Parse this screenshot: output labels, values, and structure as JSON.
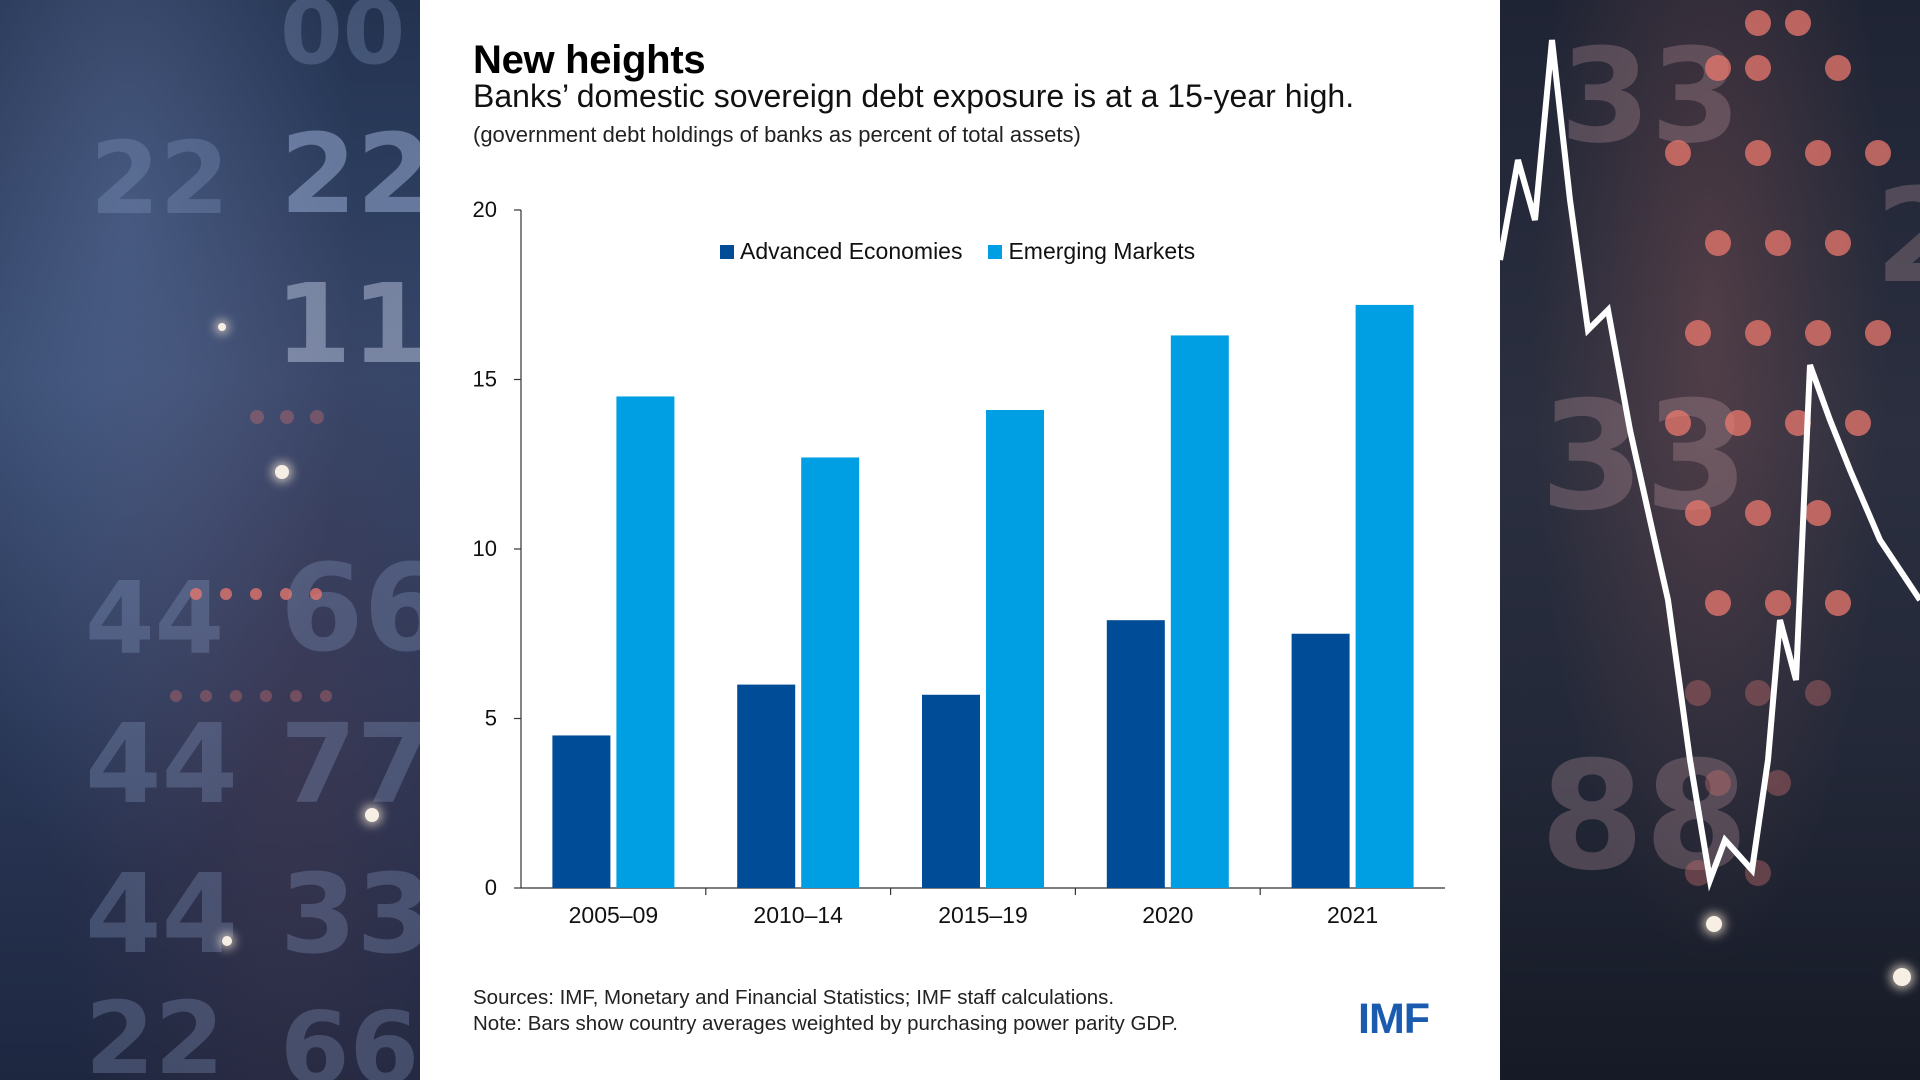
{
  "title": "New heights",
  "subtitle": "Banks’ domestic sovereign debt exposure is at a 15-year high.",
  "units_note": "(government debt holdings of banks as percent of total assets)",
  "footer": {
    "sources": "Sources: IMF, Monetary and Financial Statistics; IMF staff calculations.",
    "note": "Note: Bars show country averages weighted by purchasing power parity GDP."
  },
  "logo_text": "IMF",
  "colors": {
    "advanced": "#004c97",
    "emerging": "#009fe3",
    "axis": "#333333",
    "logo": "#1a5bb0"
  },
  "chart_data": {
    "type": "bar",
    "title": "New heights",
    "subtitle": "Banks’ domestic sovereign debt exposure is at a 15-year high.",
    "xlabel": "",
    "ylabel": "",
    "categories": [
      "2005–09",
      "2010–14",
      "2015–19",
      "2020",
      "2021"
    ],
    "series": [
      {
        "name": "Advanced Economies",
        "values": [
          4.5,
          6.0,
          5.7,
          7.9,
          7.5
        ]
      },
      {
        "name": "Emerging Markets",
        "values": [
          14.5,
          12.7,
          14.1,
          16.3,
          17.2
        ]
      }
    ],
    "ylim": [
      0,
      20
    ],
    "yticks": [
      0,
      5,
      10,
      15,
      20
    ],
    "grid": false,
    "legend": "top-center"
  }
}
